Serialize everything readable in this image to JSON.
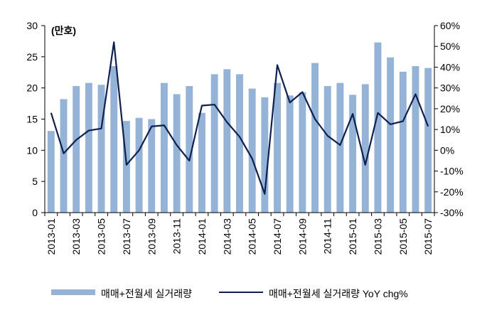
{
  "chart_data": {
    "type": "bar",
    "unit_label": "(만호)",
    "categories": [
      "2013-01",
      "2013-02",
      "2013-03",
      "2013-04",
      "2013-05",
      "2013-06",
      "2013-07",
      "2013-08",
      "2013-09",
      "2013-10",
      "2013-11",
      "2013-12",
      "2014-01",
      "2014-02",
      "2014-03",
      "2014-04",
      "2014-05",
      "2014-06",
      "2014-07",
      "2014-08",
      "2014-09",
      "2014-10",
      "2014-11",
      "2014-12",
      "2015-01",
      "2015-02",
      "2015-03",
      "2015-04",
      "2015-05",
      "2015-06",
      "2015-07"
    ],
    "x_tick_labels": [
      "2013-01",
      "2013-03",
      "2013-05",
      "2013-07",
      "2013-09",
      "2013-11",
      "2014-01",
      "2014-03",
      "2014-05",
      "2014-07",
      "2014-09",
      "2014-11",
      "2015-01",
      "2015-03",
      "2015-05",
      "2015-07"
    ],
    "series": [
      {
        "name": "매매+전월세 실거래량",
        "type": "bar",
        "axis": "left",
        "color": "#95B3D7",
        "values": [
          13.1,
          18.2,
          20.3,
          20.8,
          20.5,
          23.5,
          14.7,
          15.2,
          15.0,
          20.8,
          19.0,
          20.3,
          16.0,
          22.2,
          23.0,
          22.2,
          19.9,
          18.5,
          20.8,
          18.8,
          19.3,
          24.0,
          20.3,
          20.8,
          18.9,
          20.6,
          27.3,
          24.9,
          22.6,
          23.5,
          23.2
        ]
      },
      {
        "name": "매매+전월세 실거래량 YoY chg%",
        "type": "line",
        "axis": "right",
        "color": "#0F1F4F",
        "values": [
          18,
          -1.5,
          5,
          9.5,
          10.5,
          52,
          -7,
          0,
          11.5,
          12,
          2.5,
          -5,
          21.5,
          22,
          13.5,
          6.5,
          -4,
          -21,
          41,
          23,
          28,
          15,
          7,
          2.5,
          17.5,
          -7,
          18,
          12.5,
          14,
          27,
          11.5
        ]
      }
    ],
    "y_left": {
      "min": 0,
      "max": 30,
      "ticks": [
        "0",
        "5",
        "10",
        "15",
        "20",
        "25",
        "30"
      ]
    },
    "y_right": {
      "min": -30,
      "max": 60,
      "ticks": [
        "-30%",
        "-20%",
        "-10%",
        "0%",
        "10%",
        "20%",
        "30%",
        "40%",
        "50%",
        "60%"
      ]
    },
    "legend_position": "bottom",
    "grid": false
  }
}
